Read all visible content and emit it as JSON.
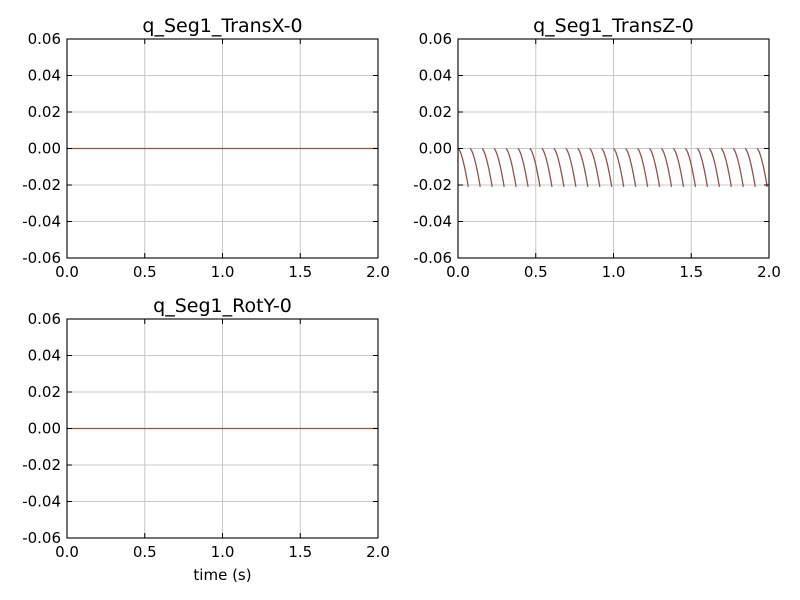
{
  "figure": {
    "background": "#ffffff",
    "line_color": "#8c564b"
  },
  "chart_data": [
    {
      "type": "line",
      "title": "q_Seg1_TransX-0",
      "xlabel": "",
      "ylabel": "",
      "xlim": [
        0.0,
        2.0
      ],
      "ylim": [
        -0.06,
        0.06
      ],
      "xticks": [
        "0.0",
        "0.5",
        "1.0",
        "1.5",
        "2.0"
      ],
      "yticks": [
        "0.06",
        "0.04",
        "0.02",
        "0.00",
        "-0.02",
        "-0.04",
        "-0.06"
      ],
      "grid": true,
      "series": [
        {
          "x": [
            0.0,
            2.0
          ],
          "y": [
            0.0,
            0.0
          ]
        }
      ]
    },
    {
      "type": "line",
      "title": "q_Seg1_TransZ-0",
      "xlabel": "",
      "ylabel": "",
      "xlim": [
        0.0,
        2.0
      ],
      "ylim": [
        -0.06,
        0.06
      ],
      "xticks": [
        "0.0",
        "0.5",
        "1.0",
        "1.5",
        "2.0"
      ],
      "yticks": [
        "0.06",
        "0.04",
        "0.02",
        "0.00",
        "-0.02",
        "-0.04",
        "-0.06"
      ],
      "grid": true,
      "pattern": {
        "description": "repeated curves dropping from 0.00 to about -0.021",
        "count": 26,
        "x_start": 0.0,
        "spacing": 0.0769,
        "duration": 0.066,
        "y_min": -0.021
      },
      "series": []
    },
    {
      "type": "line",
      "title": "q_Seg1_RotY-0",
      "xlabel": "time (s)",
      "ylabel": "",
      "xlim": [
        0.0,
        2.0
      ],
      "ylim": [
        -0.06,
        0.06
      ],
      "xticks": [
        "0.0",
        "0.5",
        "1.0",
        "1.5",
        "2.0"
      ],
      "yticks": [
        "0.06",
        "0.04",
        "0.02",
        "0.00",
        "-0.02",
        "-0.04",
        "-0.06"
      ],
      "grid": true,
      "series": [
        {
          "x": [
            0.0,
            2.0
          ],
          "y": [
            0.0,
            0.0
          ]
        }
      ]
    }
  ]
}
